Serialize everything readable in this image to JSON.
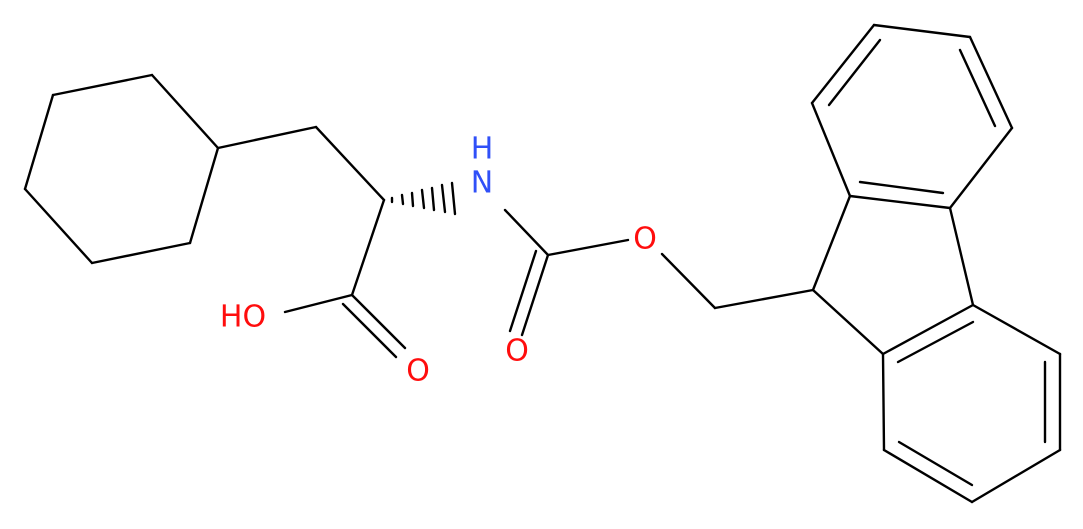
{
  "atoms": [
    {
      "label": "H"
    },
    {
      "label": "N"
    },
    {
      "label": "O"
    },
    {
      "label": "O"
    },
    {
      "label": "HO"
    },
    {
      "label": "O"
    }
  ]
}
